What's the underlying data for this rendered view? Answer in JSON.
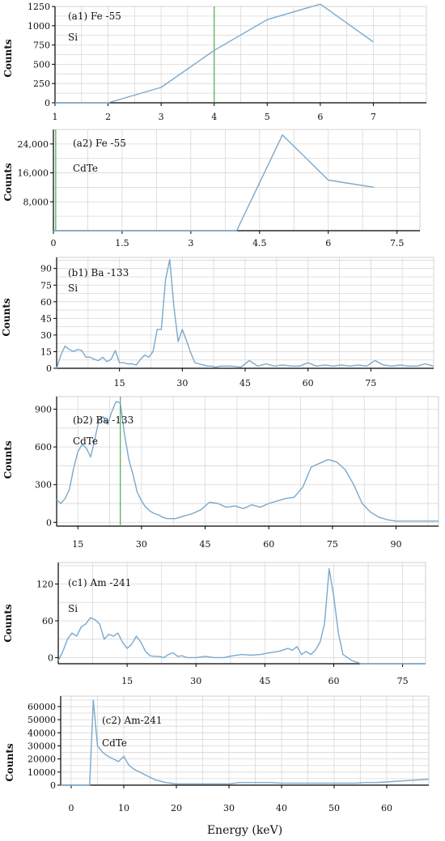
{
  "chart_data": [
    {
      "type": "line",
      "annotation_line1": "(a1) Fe -55",
      "annotation_line2": "Si",
      "ylabel": "Counts",
      "xlim": [
        1,
        8
      ],
      "ylim": [
        0,
        1250
      ],
      "xticks": [
        1,
        2,
        3,
        4,
        5,
        6,
        7
      ],
      "xtick_labels": [
        "1",
        "2",
        "3",
        "4",
        "5",
        "6",
        "7"
      ],
      "yticks": [
        0,
        250,
        500,
        750,
        1000,
        1250
      ],
      "ytick_labels": [
        "0",
        "250",
        "500",
        "750",
        "1000",
        "1250"
      ],
      "grid": true,
      "marker_x": 4,
      "series": [
        {
          "x": [
            1,
            2,
            3,
            4,
            5,
            6,
            7
          ],
          "y": [
            0,
            0,
            200,
            680,
            1080,
            1280,
            790
          ]
        }
      ]
    },
    {
      "type": "line",
      "annotation_line1": "(a2) Fe -55",
      "annotation_line2": "CdTe",
      "ylabel": "Counts",
      "xlim": [
        0,
        8
      ],
      "ylim": [
        0,
        28000
      ],
      "xticks": [
        0,
        1.5,
        3,
        4.5,
        6,
        7.5
      ],
      "xtick_labels": [
        "0",
        "1.5",
        "3",
        "4.5",
        "6",
        "7.5"
      ],
      "yticks": [
        8000,
        16000,
        24000
      ],
      "ytick_labels": [
        "8,000",
        "16,000",
        "24,000"
      ],
      "grid": true,
      "marker_x": 0.05,
      "series": [
        {
          "x": [
            0,
            4,
            5,
            6,
            7
          ],
          "y": [
            0,
            0,
            26500,
            14000,
            12000
          ]
        }
      ]
    },
    {
      "type": "line",
      "annotation_line1": "(b1) Ba -133",
      "annotation_line2": "Si",
      "ylabel": "Counts",
      "xlim": [
        0,
        90
      ],
      "ylim": [
        0,
        100
      ],
      "xticks": [
        15,
        30,
        45,
        60,
        75
      ],
      "xtick_labels": [
        "15",
        "30",
        "45",
        "60",
        "75"
      ],
      "yticks": [
        0,
        15,
        30,
        45,
        60,
        75,
        90
      ],
      "ytick_labels": [
        "0",
        "15",
        "30",
        "45",
        "60",
        "75",
        "90"
      ],
      "grid": true,
      "series": [
        {
          "x": [
            0,
            1,
            2,
            3,
            4,
            5,
            6,
            7,
            8,
            9,
            10,
            11,
            12,
            13,
            14,
            15,
            16,
            17,
            18,
            19,
            20,
            21,
            22,
            23,
            24,
            25,
            26,
            27,
            28,
            29,
            30,
            31,
            32,
            33,
            34,
            35,
            36,
            37,
            38,
            39,
            40,
            42,
            44,
            46,
            48,
            50,
            52,
            54,
            56,
            58,
            60,
            62,
            64,
            66,
            68,
            70,
            72,
            74,
            76,
            78,
            80,
            82,
            84,
            86,
            88,
            90
          ],
          "y": [
            0,
            12,
            20,
            17,
            15,
            17,
            16,
            10,
            10,
            8,
            7,
            10,
            6,
            8,
            16,
            5,
            5,
            4,
            4,
            3,
            8,
            12,
            10,
            15,
            35,
            35,
            80,
            98,
            55,
            24,
            35,
            25,
            14,
            5,
            4,
            3,
            2,
            2,
            1,
            2,
            2,
            2,
            1,
            7,
            2,
            4,
            2,
            3,
            2,
            2,
            5,
            2,
            3,
            2,
            3,
            2,
            3,
            2,
            7,
            3,
            2,
            3,
            2,
            2,
            4,
            2
          ]
        }
      ]
    },
    {
      "type": "line",
      "annotation_line1": "(b2) Ba -133",
      "annotation_line2": "CdTe",
      "ylabel": "Counts",
      "xlim": [
        10,
        100
      ],
      "ylim": [
        -30,
        1000
      ],
      "xticks": [
        15,
        30,
        45,
        60,
        75,
        90
      ],
      "xtick_labels": [
        "15",
        "30",
        "45",
        "60",
        "75",
        "90"
      ],
      "yticks": [
        0,
        300,
        600,
        900
      ],
      "ytick_labels": [
        "0",
        "300",
        "600",
        "900"
      ],
      "grid": true,
      "marker_x": 25,
      "series": [
        {
          "x": [
            10,
            11,
            12,
            13,
            14,
            15,
            16,
            17,
            18,
            19,
            20,
            21,
            22,
            23,
            24,
            25,
            26,
            27,
            28,
            29,
            30,
            31,
            32,
            33,
            34,
            35,
            36,
            38,
            40,
            42,
            44,
            46,
            48,
            50,
            52,
            54,
            56,
            58,
            60,
            62,
            64,
            66,
            68,
            70,
            72,
            74,
            76,
            78,
            80,
            82,
            84,
            86,
            88,
            90,
            92,
            94,
            96,
            98,
            100
          ],
          "y": [
            180,
            150,
            190,
            260,
            430,
            560,
            620,
            590,
            520,
            660,
            820,
            840,
            780,
            880,
            960,
            950,
            700,
            500,
            380,
            240,
            170,
            120,
            90,
            70,
            60,
            40,
            30,
            30,
            50,
            70,
            100,
            160,
            150,
            120,
            130,
            110,
            140,
            120,
            150,
            170,
            190,
            200,
            280,
            440,
            470,
            500,
            480,
            420,
            300,
            150,
            80,
            40,
            20,
            10,
            10,
            10,
            10,
            10,
            10
          ]
        }
      ]
    },
    {
      "type": "line",
      "annotation_line1": "(c1) Am -241",
      "annotation_line2": "Si",
      "ylabel": "Counts",
      "xlim": [
        0,
        80
      ],
      "ylim": [
        -10,
        155
      ],
      "xticks": [
        15,
        30,
        45,
        60,
        75
      ],
      "xtick_labels": [
        "15",
        "30",
        "45",
        "60",
        "75"
      ],
      "yticks": [
        0,
        60,
        120
      ],
      "ytick_labels": [
        "0",
        "60",
        "120"
      ],
      "grid": true,
      "series": [
        {
          "x": [
            0,
            1,
            2,
            3,
            4,
            5,
            6,
            7,
            8,
            9,
            10,
            11,
            12,
            13,
            14,
            15,
            16,
            17,
            18,
            19,
            20,
            21,
            22,
            23,
            24,
            25,
            26,
            27,
            28,
            29,
            30,
            32,
            34,
            36,
            38,
            40,
            42,
            44,
            46,
            48,
            50,
            51,
            52,
            53,
            54,
            55,
            56,
            57,
            58,
            59,
            60,
            61,
            62,
            64,
            66,
            68,
            70,
            72,
            74,
            76,
            78,
            80
          ],
          "y": [
            -5,
            10,
            30,
            40,
            35,
            50,
            55,
            65,
            62,
            55,
            30,
            38,
            35,
            40,
            25,
            15,
            22,
            35,
            25,
            10,
            3,
            2,
            2,
            0,
            5,
            8,
            2,
            3,
            0,
            0,
            0,
            2,
            0,
            0,
            3,
            5,
            4,
            5,
            8,
            10,
            15,
            12,
            18,
            5,
            10,
            5,
            12,
            25,
            55,
            145,
            100,
            40,
            5,
            -5,
            -10,
            -10,
            -10,
            -10,
            -10,
            -10,
            -10,
            -10
          ]
        }
      ]
    },
    {
      "type": "line",
      "annotation_line1": "(c2) Am-241",
      "annotation_line2": "CdTe",
      "ylabel": "Counts",
      "xlabel": "Energy  (keV)",
      "xlim": [
        -2,
        68
      ],
      "ylim": [
        0,
        68000
      ],
      "xticks": [
        0,
        10,
        20,
        30,
        40,
        50,
        60
      ],
      "xtick_labels": [
        "0",
        "10",
        "20",
        "30",
        "40",
        "50",
        "60"
      ],
      "yticks": [
        0,
        10000,
        20000,
        30000,
        40000,
        50000,
        60000
      ],
      "ytick_labels": [
        "0",
        "10000",
        "20000",
        "30000",
        "40000",
        "50000",
        "60000"
      ],
      "grid": true,
      "series": [
        {
          "x": [
            -2,
            2,
            3.5,
            4.2,
            5,
            6,
            7,
            8,
            9,
            10,
            11,
            12,
            13,
            14,
            15,
            16,
            17,
            18,
            19,
            20,
            22,
            24,
            26,
            28,
            30,
            32,
            34,
            36,
            38,
            40,
            42,
            44,
            46,
            48,
            50,
            52,
            54,
            56,
            58,
            60,
            62,
            64,
            66,
            68
          ],
          "y": [
            0,
            0,
            0,
            65000,
            30000,
            25000,
            22000,
            20000,
            18000,
            22000,
            15000,
            12000,
            10000,
            8000,
            6000,
            4000,
            3000,
            2000,
            1500,
            1000,
            1000,
            1000,
            1000,
            1000,
            1000,
            2000,
            2000,
            2000,
            2000,
            1500,
            1500,
            1500,
            1500,
            1500,
            1500,
            1500,
            1500,
            2000,
            2000,
            2500,
            3000,
            3500,
            4000,
            4500
          ]
        }
      ]
    }
  ],
  "colors": {
    "line": "#7aa9cc",
    "marker": "#5bb05b",
    "grid": "#d8d8d8",
    "axis": "#000000",
    "frame": "#cfcfcf"
  }
}
